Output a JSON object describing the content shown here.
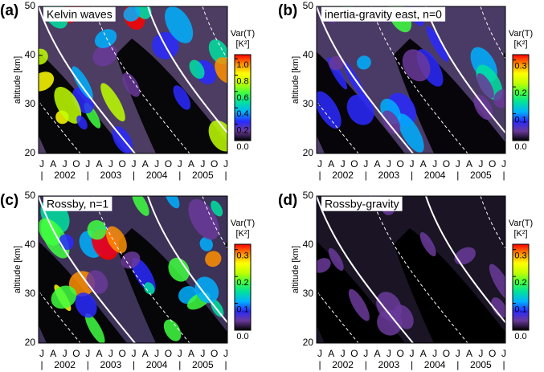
{
  "chart_data": [
    {
      "type": "contour",
      "panel": "(a)",
      "title": "Kelvin waves",
      "ylabel": "altitude [km]",
      "ylim": [
        20,
        50
      ],
      "yticks": [
        20,
        30,
        40,
        50
      ],
      "months": [
        "J",
        "A",
        "J",
        "O",
        "J",
        "A",
        "J",
        "O",
        "J",
        "A",
        "J",
        "O",
        "J",
        "A",
        "J",
        "O",
        "J"
      ],
      "years": [
        "2002",
        "2003",
        "2004",
        "2005"
      ],
      "colorbar_title": [
        "Var(T)",
        "[K²]"
      ],
      "clim": [
        0,
        1.05
      ],
      "cticks": [
        {
          "value": 0,
          "label": "0.0"
        },
        0.2,
        0.4,
        0.6,
        0.8,
        {
          "value": 1,
          "label": "1.0"
        }
      ],
      "colormap": [
        "#000000",
        "#6a3a9a",
        "#2a2aff",
        "#00b0ff",
        "#00e0a0",
        "#40ff40",
        "#c0ff00",
        "#ffff00",
        "#ff9000",
        "#ff0000"
      ]
    },
    {
      "type": "contour",
      "panel": "(b)",
      "title": "inertia-gravity east, n=0",
      "ylabel": "altitude [km]",
      "ylim": [
        20,
        50
      ],
      "yticks": [
        20,
        30,
        40,
        50
      ],
      "months": [
        "J",
        "A",
        "J",
        "O",
        "J",
        "A",
        "J",
        "O",
        "J",
        "A",
        "J",
        "O",
        "J",
        "A",
        "J",
        "O",
        "J"
      ],
      "years": [
        "2002",
        "2003",
        "2004",
        "2005"
      ],
      "colorbar_title": [
        "Var(T)",
        "[K²]"
      ],
      "clim": [
        0,
        0.32
      ],
      "cticks": [
        {
          "value": 0,
          "label": "0.0"
        },
        0.1,
        0.2,
        0.3
      ],
      "colormap": [
        "#000000",
        "#6a3a9a",
        "#2a2aff",
        "#00b0ff",
        "#00e0a0",
        "#40ff40",
        "#c0ff00",
        "#ffff00",
        "#ff9000",
        "#ff0000"
      ]
    },
    {
      "type": "contour",
      "panel": "(c)",
      "title": "Rossby, n=1",
      "ylabel": "altitude [km]",
      "ylim": [
        20,
        50
      ],
      "yticks": [
        20,
        30,
        40,
        50
      ],
      "months": [
        "J",
        "A",
        "J",
        "O",
        "J",
        "A",
        "J",
        "O",
        "J",
        "A",
        "J",
        "O",
        "J",
        "A",
        "J",
        "O",
        "J"
      ],
      "years": [
        "2002",
        "2003",
        "2004",
        "2005"
      ],
      "colorbar_title": [
        "Var(T)",
        "[K²]"
      ],
      "clim": [
        0,
        0.32
      ],
      "cticks": [
        {
          "value": 0,
          "label": "0.0"
        },
        0.1,
        0.2,
        0.3
      ],
      "colormap": [
        "#000000",
        "#6a3a9a",
        "#2a2aff",
        "#00b0ff",
        "#00e0a0",
        "#40ff40",
        "#c0ff00",
        "#ffff00",
        "#ff9000",
        "#ff0000"
      ]
    },
    {
      "type": "contour",
      "panel": "(d)",
      "title": "Rossby-gravity",
      "ylabel": "altitude [km]",
      "ylim": [
        20,
        50
      ],
      "yticks": [
        20,
        30,
        40,
        50
      ],
      "months": [
        "J",
        "A",
        "J",
        "O",
        "J",
        "A",
        "J",
        "O",
        "J",
        "A",
        "J",
        "O",
        "J",
        "A",
        "J",
        "O",
        "J"
      ],
      "years": [
        "2002",
        "2003",
        "2004",
        "2005"
      ],
      "colorbar_title": [
        "Var(T)",
        "[K²]"
      ],
      "clim": [
        0,
        0.32
      ],
      "cticks": [
        {
          "value": 0,
          "label": "0.0"
        },
        0.1,
        0.2,
        0.3
      ],
      "colormap": [
        "#000000",
        "#6a3a9a",
        "#2a2aff",
        "#00b0ff",
        "#00e0a0",
        "#40ff40",
        "#c0ff00",
        "#ffff00",
        "#ff9000",
        "#ff0000"
      ]
    }
  ]
}
